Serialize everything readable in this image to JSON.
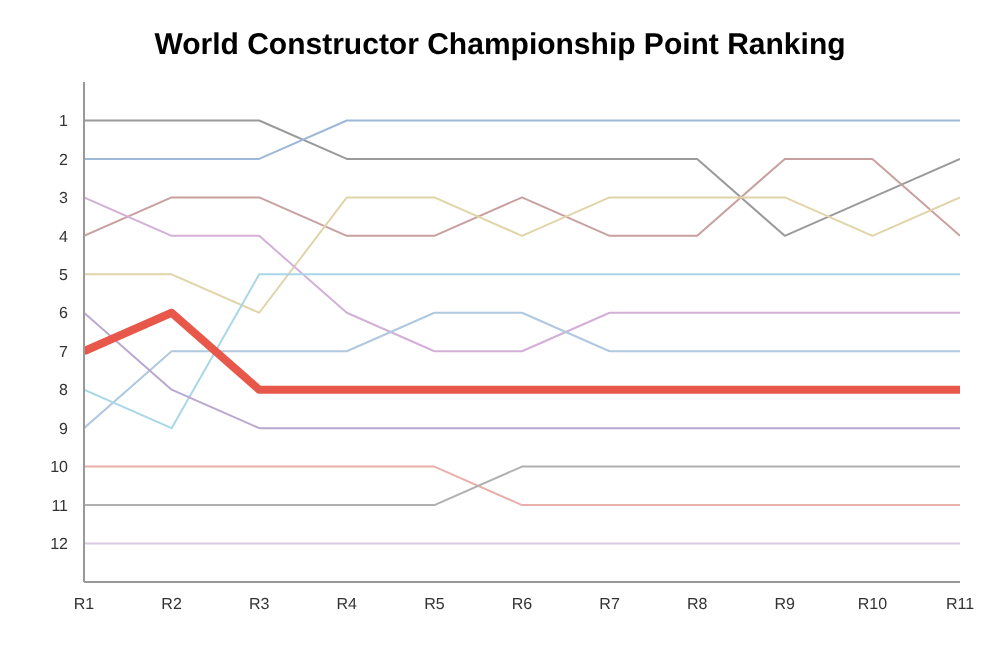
{
  "chart_data": {
    "type": "line",
    "title": "World Constructor Championship Point Ranking",
    "categories": [
      "R1",
      "R2",
      "R3",
      "R4",
      "R5",
      "R6",
      "R7",
      "R8",
      "R9",
      "R10",
      "R11"
    ],
    "series": [
      {
        "color": "#9a9a9a",
        "values": [
          1,
          1,
          1,
          2,
          2,
          2,
          2,
          2,
          4,
          3,
          2
        ]
      },
      {
        "color": "#9db8d9",
        "values": [
          2,
          2,
          2,
          1,
          1,
          1,
          1,
          1,
          1,
          1,
          1
        ]
      },
      {
        "color": "#c9a0a0",
        "values": [
          4,
          3,
          3,
          4,
          4,
          3,
          4,
          4,
          2,
          2,
          4
        ]
      },
      {
        "color": "#e0d4a8",
        "values": [
          5,
          5,
          6,
          3,
          3,
          4,
          3,
          3,
          3,
          4,
          3
        ]
      },
      {
        "color": "#d4b0d8",
        "values": [
          3,
          4,
          4,
          6,
          7,
          7,
          6,
          6,
          6,
          6,
          6
        ]
      },
      {
        "color": "#b0c8e0",
        "values": [
          9,
          7,
          7,
          7,
          6,
          6,
          7,
          7,
          7,
          7,
          7
        ]
      },
      {
        "color": "#a8d8e8",
        "values": [
          8,
          9,
          5,
          5,
          5,
          5,
          5,
          5,
          5,
          5,
          5
        ]
      },
      {
        "color": "#b8a8d0",
        "values": [
          6,
          8,
          9,
          9,
          9,
          9,
          9,
          9,
          9,
          9,
          9
        ]
      },
      {
        "color": "#e8584a",
        "values": [
          7,
          6,
          8,
          8,
          8,
          8,
          8,
          8,
          8,
          8,
          8
        ]
      },
      {
        "color": "#e8b0a8",
        "values": [
          10,
          10,
          10,
          10,
          10,
          11,
          11,
          11,
          11,
          11,
          11
        ]
      },
      {
        "color": "#b0b0b0",
        "values": [
          11,
          11,
          11,
          11,
          11,
          10,
          10,
          10,
          10,
          10,
          10
        ]
      },
      {
        "color": "#d8c8e0",
        "values": [
          12,
          12,
          12,
          12,
          12,
          12,
          12,
          12,
          12,
          12,
          12
        ]
      }
    ],
    "ylim": [
      13,
      0
    ],
    "yticks": [
      1,
      2,
      3,
      4,
      5,
      6,
      7,
      8,
      9,
      10,
      11,
      12
    ],
    "grid": false,
    "legend": false,
    "marker": "none",
    "line_style": "solid"
  }
}
